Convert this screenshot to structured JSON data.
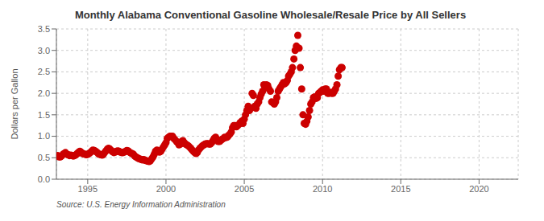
{
  "chart_data": {
    "type": "scatter",
    "title": "Monthly Alabama Conventional Gasoline Wholesale/Resale Price by All Sellers",
    "ylabel": "Dollars per Gallon",
    "annotations": [
      "Source: U.S. Energy Information Administration"
    ],
    "color": "#cc0000",
    "grid": true,
    "xlim": [
      1993.0,
      2022.5
    ],
    "xticks": [
      1995,
      2000,
      2005,
      2010,
      2015,
      2020
    ],
    "ylim": [
      0.0,
      3.5
    ],
    "yticks": [
      {
        "value": 0.0,
        "label": "0.0"
      },
      0.5,
      {
        "value": 1.0,
        "label": "1.0"
      },
      1.5,
      {
        "value": 2.0,
        "label": "2.0"
      },
      2.5,
      {
        "value": 3.0,
        "label": "3.0"
      },
      3.5
    ],
    "x": [
      1993.08,
      1993.17,
      1993.25,
      1993.33,
      1993.42,
      1993.5,
      1993.58,
      1993.67,
      1993.75,
      1993.83,
      1993.92,
      1994.0,
      1994.08,
      1994.17,
      1994.25,
      1994.33,
      1994.42,
      1994.5,
      1994.58,
      1994.67,
      1994.75,
      1994.83,
      1994.92,
      1995.0,
      1995.08,
      1995.17,
      1995.25,
      1995.33,
      1995.42,
      1995.5,
      1995.58,
      1995.67,
      1995.75,
      1995.83,
      1995.92,
      1996.0,
      1996.08,
      1996.17,
      1996.25,
      1996.33,
      1996.42,
      1996.5,
      1996.58,
      1996.67,
      1996.75,
      1996.83,
      1996.92,
      1997.0,
      1997.08,
      1997.17,
      1997.25,
      1997.33,
      1997.42,
      1997.5,
      1997.58,
      1997.67,
      1997.75,
      1997.83,
      1997.92,
      1998.0,
      1998.08,
      1998.17,
      1998.25,
      1998.33,
      1998.42,
      1998.5,
      1998.58,
      1998.67,
      1998.75,
      1998.83,
      1998.92,
      1999.0,
      1999.08,
      1999.17,
      1999.25,
      1999.33,
      1999.42,
      1999.5,
      1999.58,
      1999.67,
      1999.75,
      1999.83,
      1999.92,
      2000.0,
      2000.08,
      2000.17,
      2000.25,
      2000.33,
      2000.42,
      2000.5,
      2000.58,
      2000.67,
      2000.75,
      2000.83,
      2000.92,
      2001.0,
      2001.08,
      2001.17,
      2001.25,
      2001.33,
      2001.42,
      2001.5,
      2001.58,
      2001.67,
      2001.75,
      2001.83,
      2001.92,
      2002.0,
      2002.08,
      2002.17,
      2002.25,
      2002.33,
      2002.42,
      2002.5,
      2002.58,
      2002.67,
      2002.75,
      2002.83,
      2002.92,
      2003.0,
      2003.08,
      2003.17,
      2003.25,
      2003.33,
      2003.42,
      2003.5,
      2003.58,
      2003.67,
      2003.75,
      2003.83,
      2003.92,
      2004.0,
      2004.08,
      2004.17,
      2004.25,
      2004.33,
      2004.42,
      2004.5,
      2004.58,
      2004.67,
      2004.75,
      2004.83,
      2004.92,
      2005.0,
      2005.08,
      2005.17,
      2005.25,
      2005.33,
      2005.42,
      2005.5,
      2005.58,
      2005.67,
      2005.75,
      2005.83,
      2005.92,
      2006.0,
      2006.08,
      2006.17,
      2006.25,
      2006.33,
      2006.42,
      2006.5,
      2006.58,
      2006.67,
      2006.75,
      2006.83,
      2006.92,
      2007.0,
      2007.08,
      2007.17,
      2007.25,
      2007.33,
      2007.42,
      2007.5,
      2007.58,
      2007.67,
      2007.75,
      2007.83,
      2007.92,
      2008.0,
      2008.08,
      2008.17,
      2008.25,
      2008.33,
      2008.42,
      2008.5,
      2008.58,
      2008.67,
      2008.75,
      2008.83,
      2008.92,
      2009.0,
      2009.08,
      2009.17,
      2009.25,
      2009.33,
      2009.42,
      2009.5,
      2009.58,
      2009.67,
      2009.75,
      2009.83,
      2009.92,
      2010.0,
      2010.08,
      2010.17,
      2010.25,
      2010.33,
      2010.42,
      2010.5,
      2010.58,
      2010.67,
      2010.75,
      2010.83,
      2010.92,
      2011.0,
      2011.08,
      2011.17,
      2011.25
    ],
    "values": [
      0.55,
      0.52,
      0.52,
      0.54,
      0.58,
      0.6,
      0.62,
      0.58,
      0.57,
      0.55,
      0.56,
      0.55,
      0.54,
      0.55,
      0.57,
      0.6,
      0.63,
      0.65,
      0.63,
      0.6,
      0.59,
      0.58,
      0.57,
      0.58,
      0.6,
      0.62,
      0.65,
      0.68,
      0.67,
      0.65,
      0.63,
      0.6,
      0.58,
      0.57,
      0.56,
      0.58,
      0.62,
      0.66,
      0.7,
      0.72,
      0.7,
      0.67,
      0.64,
      0.62,
      0.63,
      0.65,
      0.66,
      0.65,
      0.63,
      0.62,
      0.62,
      0.63,
      0.65,
      0.67,
      0.66,
      0.63,
      0.61,
      0.6,
      0.58,
      0.54,
      0.52,
      0.5,
      0.48,
      0.47,
      0.46,
      0.45,
      0.46,
      0.44,
      0.43,
      0.42,
      0.41,
      0.43,
      0.47,
      0.52,
      0.58,
      0.65,
      0.68,
      0.65,
      0.63,
      0.65,
      0.7,
      0.75,
      0.8,
      0.85,
      0.95,
      0.98,
      1.0,
      1.0,
      1.0,
      0.95,
      0.92,
      0.88,
      0.85,
      0.8,
      0.82,
      0.88,
      0.9,
      0.85,
      0.82,
      0.8,
      0.78,
      0.75,
      0.72,
      0.68,
      0.65,
      0.62,
      0.6,
      0.62,
      0.68,
      0.72,
      0.75,
      0.78,
      0.8,
      0.82,
      0.83,
      0.83,
      0.82,
      0.82,
      0.85,
      0.9,
      0.95,
      0.98,
      0.92,
      0.88,
      0.88,
      0.9,
      0.93,
      0.95,
      0.98,
      0.97,
      0.98,
      1.02,
      1.05,
      1.1,
      1.2,
      1.25,
      1.25,
      1.22,
      1.25,
      1.28,
      1.32,
      1.35,
      1.3,
      1.4,
      1.5,
      1.6,
      1.7,
      1.6,
      1.65,
      2.0,
      1.95,
      1.7,
      1.65,
      1.75,
      1.8,
      1.9,
      1.98,
      2.05,
      2.2,
      2.15,
      2.2,
      2.18,
      2.1,
      2.05,
      1.8,
      1.78,
      1.75,
      1.8,
      1.9,
      2.05,
      2.1,
      2.15,
      2.2,
      2.25,
      2.22,
      2.25,
      2.3,
      2.4,
      2.45,
      2.5,
      2.6,
      2.8,
      3.0,
      3.1,
      3.35,
      3.05,
      2.6,
      2.1,
      1.5,
      1.3,
      1.28,
      1.35,
      1.45,
      1.6,
      1.75,
      1.8,
      1.9,
      1.92,
      1.88,
      1.9,
      2.0,
      2.02,
      2.05,
      2.08,
      2.05,
      2.1,
      2.1,
      2.0,
      2.0,
      2.02,
      2.0,
      2.0,
      2.05,
      2.1,
      2.2,
      2.4,
      2.55,
      2.6,
      2.6
    ]
  }
}
